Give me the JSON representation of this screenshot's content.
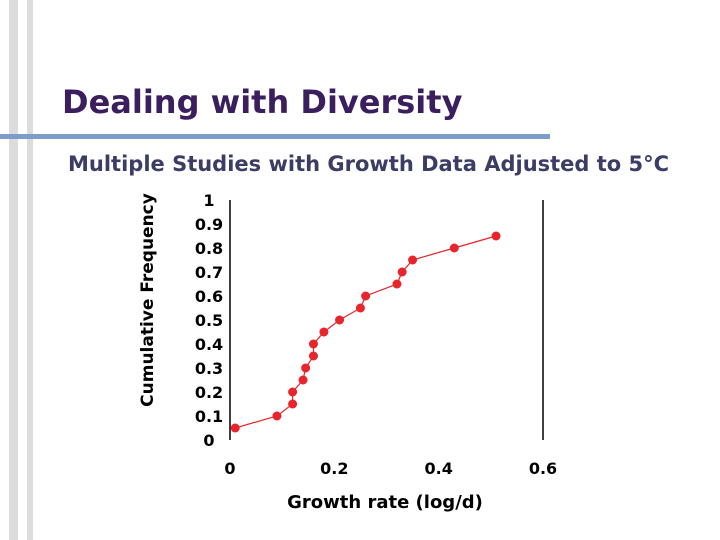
{
  "slide": {
    "title": "Dealing with Diversity",
    "subtitle": "Multiple Studies with Growth Data Adjusted to 5°C"
  },
  "colors": {
    "title": "#3a1e5e",
    "rule": "#7e9bcc",
    "series": "#e8242c"
  },
  "chart_data": {
    "type": "line",
    "title": "",
    "xlabel": "Growth rate  (log/d)",
    "ylabel": "Cumulative Frequency",
    "xlim": [
      0,
      0.6
    ],
    "ylim": [
      0,
      1
    ],
    "x_ticks": [
      "0",
      "0.2",
      "0.4",
      "0.6"
    ],
    "y_ticks": [
      "0",
      "0.1",
      "0.2",
      "0.3",
      "0.4",
      "0.5",
      "0.6",
      "0.7",
      "0.8",
      "0.9",
      "1"
    ],
    "grid": false,
    "legend": "none",
    "series": [
      {
        "points": [
          [
            0.01,
            0.05
          ],
          [
            0.09,
            0.1
          ],
          [
            0.12,
            0.15
          ],
          [
            0.12,
            0.2
          ],
          [
            0.14,
            0.25
          ],
          [
            0.145,
            0.3
          ],
          [
            0.16,
            0.35
          ],
          [
            0.16,
            0.4
          ],
          [
            0.18,
            0.45
          ],
          [
            0.21,
            0.5
          ],
          [
            0.25,
            0.55
          ],
          [
            0.26,
            0.6
          ],
          [
            0.32,
            0.65
          ],
          [
            0.33,
            0.7
          ],
          [
            0.35,
            0.75
          ],
          [
            0.43,
            0.8
          ],
          [
            0.51,
            0.85
          ]
        ]
      }
    ]
  }
}
